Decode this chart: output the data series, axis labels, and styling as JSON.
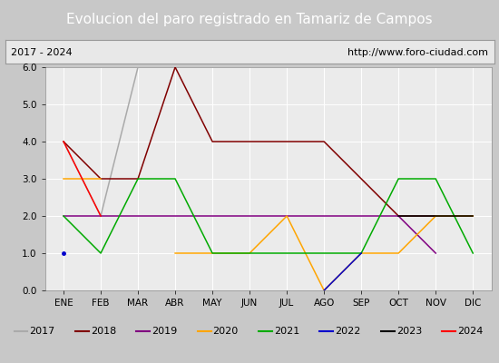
{
  "title": "Evolucion del paro registrado en Tamariz de Campos",
  "subtitle_left": "2017 - 2024",
  "subtitle_right": "http://www.foro-ciudad.com",
  "months": [
    "ENE",
    "FEB",
    "MAR",
    "ABR",
    "MAY",
    "JUN",
    "JUL",
    "AGO",
    "SEP",
    "OCT",
    "NOV",
    "DIC"
  ],
  "month_indices": [
    1,
    2,
    3,
    4,
    5,
    6,
    7,
    8,
    9,
    10,
    11,
    12
  ],
  "ylim": [
    0.0,
    6.0
  ],
  "yticks": [
    0.0,
    1.0,
    2.0,
    3.0,
    4.0,
    5.0,
    6.0
  ],
  "series": {
    "2017": {
      "color": "#aaaaaa",
      "data": [
        [
          1,
          4
        ],
        [
          2,
          2
        ],
        [
          3,
          6
        ],
        [
          4,
          null
        ],
        [
          5,
          null
        ],
        [
          6,
          null
        ],
        [
          7,
          null
        ],
        [
          8,
          null
        ],
        [
          9,
          null
        ],
        [
          10,
          null
        ],
        [
          11,
          null
        ],
        [
          12,
          null
        ]
      ]
    },
    "2018": {
      "color": "#800000",
      "data": [
        [
          1,
          4
        ],
        [
          2,
          3
        ],
        [
          3,
          3
        ],
        [
          4,
          6
        ],
        [
          5,
          4
        ],
        [
          6,
          4
        ],
        [
          7,
          4
        ],
        [
          8,
          4
        ],
        [
          9,
          3
        ],
        [
          10,
          2
        ],
        [
          11,
          2
        ],
        [
          12,
          2
        ]
      ]
    },
    "2019": {
      "color": "#800080",
      "data": [
        [
          1,
          2
        ],
        [
          2,
          2
        ],
        [
          3,
          2
        ],
        [
          4,
          2
        ],
        [
          5,
          2
        ],
        [
          6,
          2
        ],
        [
          7,
          2
        ],
        [
          8,
          2
        ],
        [
          9,
          2
        ],
        [
          10,
          2
        ],
        [
          11,
          1
        ],
        [
          12,
          null
        ]
      ]
    },
    "2020": {
      "color": "#ffa500",
      "data": [
        [
          1,
          3
        ],
        [
          2,
          3
        ],
        [
          3,
          null
        ],
        [
          4,
          1
        ],
        [
          5,
          1
        ],
        [
          6,
          1
        ],
        [
          7,
          2
        ],
        [
          8,
          0
        ],
        [
          9,
          1
        ],
        [
          10,
          1
        ],
        [
          11,
          2
        ],
        [
          12,
          2
        ]
      ]
    },
    "2021": {
      "color": "#00aa00",
      "data": [
        [
          1,
          2
        ],
        [
          2,
          1
        ],
        [
          3,
          3
        ],
        [
          4,
          3
        ],
        [
          5,
          1
        ],
        [
          6,
          1
        ],
        [
          7,
          1
        ],
        [
          8,
          1
        ],
        [
          9,
          1
        ],
        [
          10,
          3
        ],
        [
          11,
          3
        ],
        [
          12,
          1
        ]
      ]
    },
    "2022": {
      "color": "#0000cc",
      "data": [
        [
          1,
          1
        ],
        [
          2,
          null
        ],
        [
          3,
          null
        ],
        [
          4,
          null
        ],
        [
          5,
          null
        ],
        [
          6,
          null
        ],
        [
          7,
          null
        ],
        [
          8,
          0
        ],
        [
          9,
          1
        ],
        [
          10,
          null
        ],
        [
          11,
          null
        ],
        [
          12,
          null
        ]
      ]
    },
    "2023": {
      "color": "#000000",
      "data": [
        [
          1,
          null
        ],
        [
          2,
          null
        ],
        [
          3,
          null
        ],
        [
          4,
          null
        ],
        [
          5,
          null
        ],
        [
          6,
          null
        ],
        [
          7,
          null
        ],
        [
          8,
          null
        ],
        [
          9,
          null
        ],
        [
          10,
          2
        ],
        [
          11,
          2
        ],
        [
          12,
          2
        ]
      ]
    },
    "2024": {
      "color": "#ff0000",
      "data": [
        [
          1,
          4
        ],
        [
          2,
          2
        ],
        [
          3,
          null
        ],
        [
          4,
          null
        ],
        [
          5,
          null
        ],
        [
          6,
          null
        ],
        [
          7,
          null
        ],
        [
          8,
          null
        ],
        [
          9,
          null
        ],
        [
          10,
          null
        ],
        [
          11,
          null
        ],
        [
          12,
          null
        ]
      ]
    }
  },
  "title_bg_color": "#5b8dd9",
  "title_fg_color": "#ffffff",
  "subtitle_bg_color": "#e8e8e8",
  "subtitle_border_color": "#999999",
  "plot_bg_color": "#ebebeb",
  "outer_bg_color": "#c8c8c8",
  "legend_bg_color": "#e0e0e0",
  "grid_color": "#ffffff",
  "title_fontsize": 11,
  "subtitle_fontsize": 8,
  "tick_fontsize": 7.5,
  "legend_fontsize": 8
}
